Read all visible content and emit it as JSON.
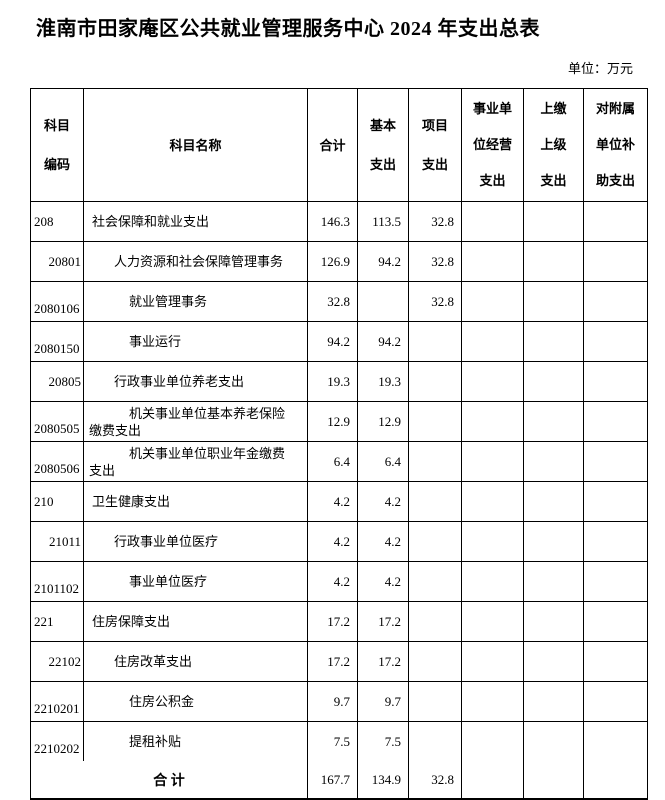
{
  "title": "淮南市田家庵区公共就业管理服务中心 2024 年支出总表",
  "unit_label": "单位：万元",
  "table": {
    "columns": [
      {
        "key": "code",
        "label": "科目编码",
        "lines": [
          "科目",
          "编码"
        ]
      },
      {
        "key": "name",
        "label": "科目名称",
        "lines": [
          "科目名称"
        ]
      },
      {
        "key": "total",
        "label": "合计",
        "lines": [
          "合计"
        ]
      },
      {
        "key": "basic",
        "label": "基本支出",
        "lines": [
          "基本",
          "支出"
        ]
      },
      {
        "key": "project",
        "label": "项目支出",
        "lines": [
          "项目",
          "支出"
        ]
      },
      {
        "key": "operating",
        "label": "事业单位经营支出",
        "lines": [
          "事业单",
          "位经营",
          "支出"
        ]
      },
      {
        "key": "remitted",
        "label": "上缴上级支出",
        "lines": [
          "上缴",
          "上级",
          "支出"
        ]
      },
      {
        "key": "subsidy",
        "label": "对附属单位补助支出",
        "lines": [
          "对附属",
          "单位补",
          "助支出"
        ]
      }
    ],
    "rows": [
      {
        "code": "208",
        "level": 1,
        "name": "社会保障和就业支出",
        "total": "146.3",
        "basic": "113.5",
        "project": "32.8",
        "operating": "",
        "remitted": "",
        "subsidy": ""
      },
      {
        "code": "20801",
        "level": 2,
        "name": "人力资源和社会保障管理事务",
        "total": "126.9",
        "basic": "94.2",
        "project": "32.8",
        "operating": "",
        "remitted": "",
        "subsidy": ""
      },
      {
        "code": "2080106",
        "level": 3,
        "name": "就业管理事务",
        "total": "32.8",
        "basic": "",
        "project": "32.8",
        "operating": "",
        "remitted": "",
        "subsidy": ""
      },
      {
        "code": "2080150",
        "level": 3,
        "name": "事业运行",
        "total": "94.2",
        "basic": "94.2",
        "project": "",
        "operating": "",
        "remitted": "",
        "subsidy": ""
      },
      {
        "code": "20805",
        "level": 2,
        "name": "行政事业单位养老支出",
        "total": "19.3",
        "basic": "19.3",
        "project": "",
        "operating": "",
        "remitted": "",
        "subsidy": ""
      },
      {
        "code": "2080505",
        "level": 3,
        "name": "机关事业单位基本养老保险缴费支出",
        "total": "12.9",
        "basic": "12.9",
        "project": "",
        "operating": "",
        "remitted": "",
        "subsidy": ""
      },
      {
        "code": "2080506",
        "level": 3,
        "name": "机关事业单位职业年金缴费支出",
        "total": "6.4",
        "basic": "6.4",
        "project": "",
        "operating": "",
        "remitted": "",
        "subsidy": ""
      },
      {
        "code": "210",
        "level": 1,
        "name": "卫生健康支出",
        "total": "4.2",
        "basic": "4.2",
        "project": "",
        "operating": "",
        "remitted": "",
        "subsidy": ""
      },
      {
        "code": "21011",
        "level": 2,
        "name": "行政事业单位医疗",
        "total": "4.2",
        "basic": "4.2",
        "project": "",
        "operating": "",
        "remitted": "",
        "subsidy": ""
      },
      {
        "code": "2101102",
        "level": 3,
        "name": "事业单位医疗",
        "total": "4.2",
        "basic": "4.2",
        "project": "",
        "operating": "",
        "remitted": "",
        "subsidy": ""
      },
      {
        "code": "221",
        "level": 1,
        "name": "住房保障支出",
        "total": "17.2",
        "basic": "17.2",
        "project": "",
        "operating": "",
        "remitted": "",
        "subsidy": ""
      },
      {
        "code": "22102",
        "level": 2,
        "name": "住房改革支出",
        "total": "17.2",
        "basic": "17.2",
        "project": "",
        "operating": "",
        "remitted": "",
        "subsidy": ""
      },
      {
        "code": "2210201",
        "level": 3,
        "name": "住房公积金",
        "total": "9.7",
        "basic": "9.7",
        "project": "",
        "operating": "",
        "remitted": "",
        "subsidy": ""
      },
      {
        "code": "2210202",
        "level": 3,
        "name": "提租补贴",
        "total": "7.5",
        "basic": "7.5",
        "project": "",
        "operating": "",
        "remitted": "",
        "subsidy": ""
      }
    ],
    "total_row": {
      "label": "合 计",
      "total": "167.7",
      "basic": "134.9",
      "project": "32.8",
      "operating": "",
      "remitted": "",
      "subsidy": ""
    }
  }
}
